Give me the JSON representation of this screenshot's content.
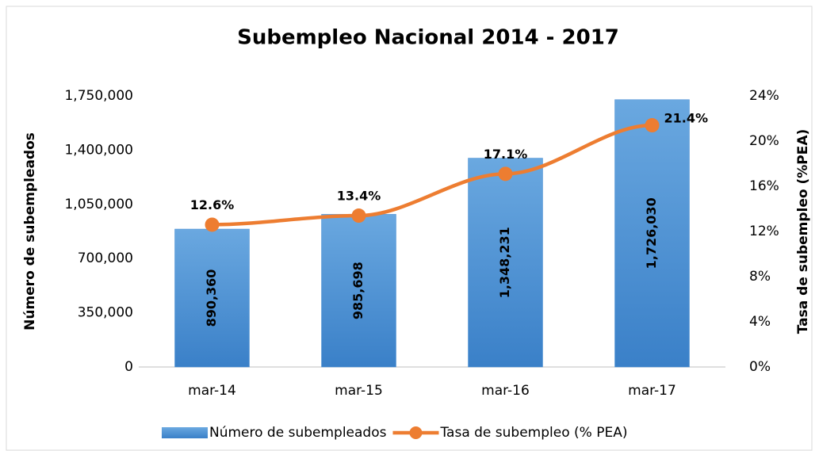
{
  "chart_data": {
    "type": "bar",
    "title": "Subempleo Nacional 2014 - 2017",
    "y_label": "Número de subempleados",
    "y2_label": "Tasa de subempleo (%PEA)",
    "categories": [
      "mar-14",
      "mar-15",
      "mar-16",
      "mar-17"
    ],
    "series": [
      {
        "name": "Número de subempleados",
        "type": "bar",
        "color": "#4a8fd3",
        "axis": "y",
        "values": [
          890360,
          985698,
          1348231,
          1726030
        ],
        "value_labels": [
          "890,360",
          "985,698",
          "1,348,231",
          "1,726,030"
        ]
      },
      {
        "name": "Tasa de subempleo (% PEA)",
        "type": "line",
        "color": "#ed7d31",
        "axis": "y2",
        "values": [
          12.6,
          13.4,
          17.1,
          21.4
        ],
        "value_labels": [
          "12.6%",
          "13.4%",
          "17.1%",
          "21.4%"
        ]
      }
    ],
    "ylim": [
      0,
      1750000
    ],
    "yticks": [
      {
        "value": 0,
        "label": "0"
      },
      {
        "value": 350000,
        "label": "350,000"
      },
      {
        "value": 700000,
        "label": "700,000"
      },
      {
        "value": 1050000,
        "label": "1,050,000"
      },
      {
        "value": 1400000,
        "label": "1,400,000"
      },
      {
        "value": 1750000,
        "label": "1,750,000"
      }
    ],
    "y2lim": [
      0,
      24
    ],
    "y2ticks": [
      {
        "value": 0,
        "label": "0%"
      },
      {
        "value": 4,
        "label": "4%"
      },
      {
        "value": 8,
        "label": "8%"
      },
      {
        "value": 12,
        "label": "12%"
      },
      {
        "value": 16,
        "label": "16%"
      },
      {
        "value": 20,
        "label": "20%"
      },
      {
        "value": 24,
        "label": "24%"
      }
    ],
    "legend": "bottom"
  }
}
